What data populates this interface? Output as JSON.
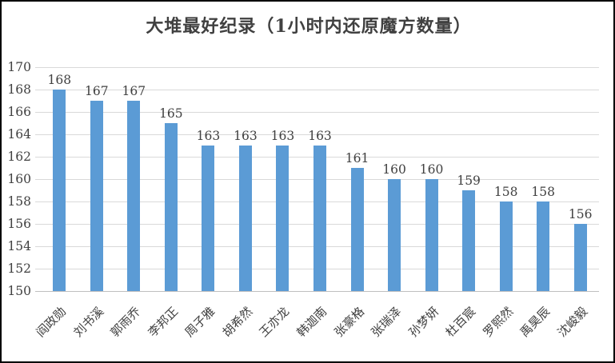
{
  "chart_data": {
    "type": "bar",
    "title": "大堆最好纪录（1小时内还原魔方数量）",
    "categories": [
      "阎政勋",
      "刘书溪",
      "郭雨乔",
      "李邦正",
      "周子雅",
      "胡希然",
      "王亦龙",
      "韩迦南",
      "张豪格",
      "张瑞泽",
      "孙梦妍",
      "杜百宸",
      "罗熙然",
      "禹昊辰",
      "沈峻毅"
    ],
    "values": [
      168,
      167,
      167,
      165,
      163,
      163,
      163,
      163,
      161,
      160,
      160,
      159,
      158,
      158,
      156
    ],
    "xlabel": "",
    "ylabel": "",
    "ylim": [
      150,
      170
    ],
    "yticks": [
      150,
      152,
      154,
      156,
      158,
      160,
      162,
      164,
      166,
      168,
      170
    ],
    "grid": true,
    "legend": false,
    "data_labels": true,
    "x_label_rotation_deg": 45,
    "colors": {
      "bar": "#5B9BD5",
      "gridline": "#D9D9D9",
      "axis_line": "#BFBFBF",
      "text": "#404040",
      "title": "#404040",
      "frame_border": "#000000",
      "background": "#FFFFFF"
    }
  }
}
